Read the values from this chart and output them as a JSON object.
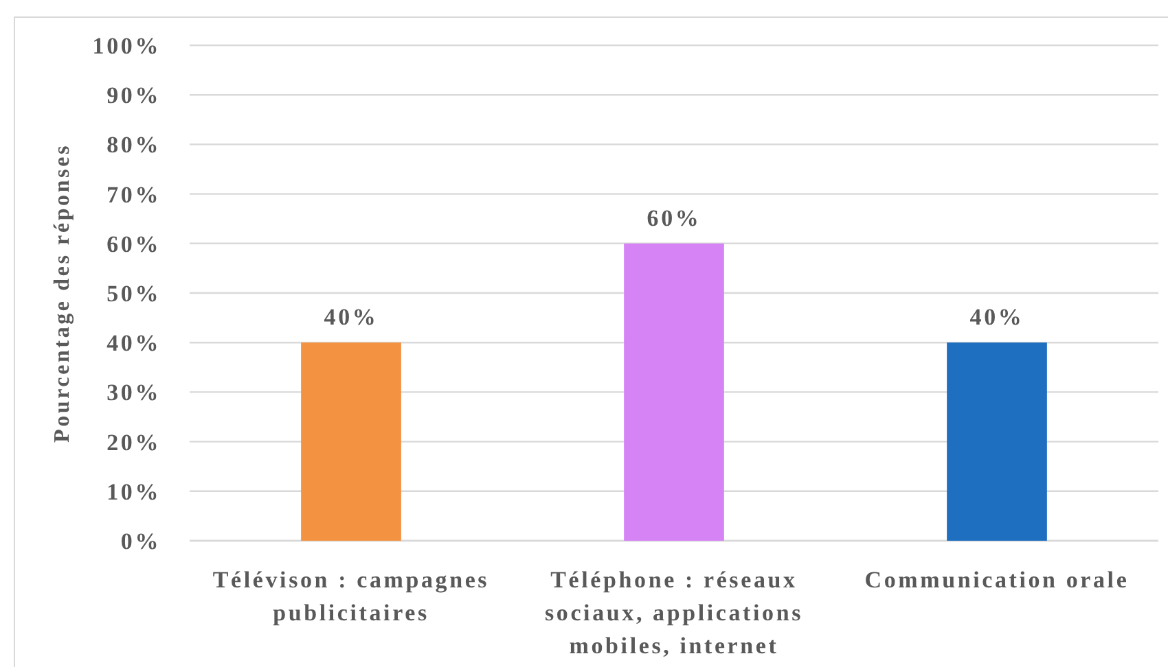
{
  "chart_data": {
    "type": "bar",
    "ylabel": "Pourcentage des réponses",
    "categories": [
      "Télévison : campagnes publicitaires",
      "Téléphone : réseaux sociaux, applications mobiles, internet",
      "Communication orale"
    ],
    "values": [
      40,
      60,
      40
    ],
    "colors": [
      "#f39240",
      "#d683f5",
      "#1f6fc1"
    ],
    "value_labels": [
      "40%",
      "60%",
      "40%"
    ],
    "ylim": [
      0,
      100
    ],
    "yticks": [
      {
        "value": 0,
        "label": "0%"
      },
      {
        "value": 10,
        "label": "10%"
      },
      {
        "value": 20,
        "label": "20%"
      },
      {
        "value": 30,
        "label": "30%"
      },
      {
        "value": 40,
        "label": "40%"
      },
      {
        "value": 50,
        "label": "50%"
      },
      {
        "value": 60,
        "label": "60%"
      },
      {
        "value": 70,
        "label": "70%"
      },
      {
        "value": 80,
        "label": "80%"
      },
      {
        "value": 90,
        "label": "90%"
      },
      {
        "value": 100,
        "label": "100%"
      }
    ],
    "grid": "y"
  }
}
